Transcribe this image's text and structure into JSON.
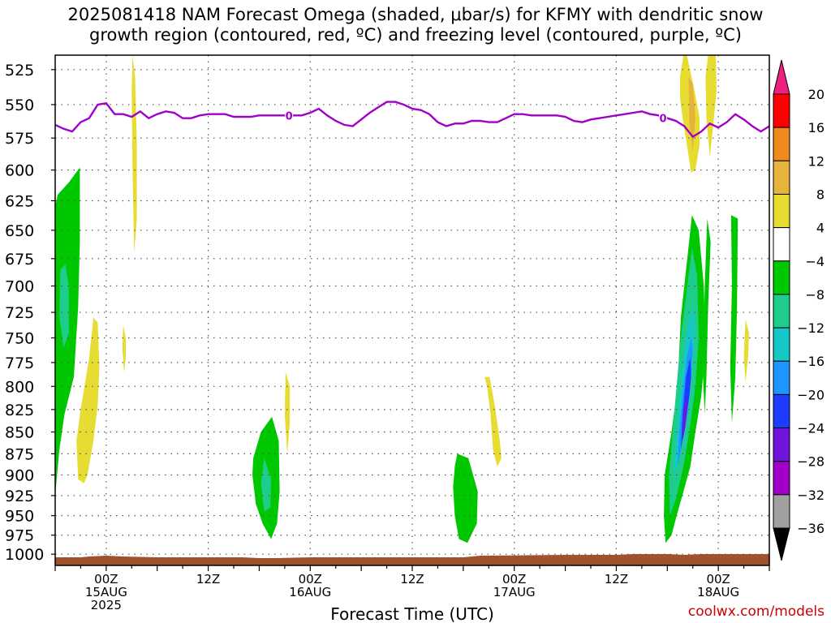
{
  "title": {
    "line1": "2025081418 NAM Forecast Omega (shaded, μbar/s) for KFMY with dendritic snow",
    "line2": "growth region (contoured, red, ºC) and freezing level (contoured, purple, ºC)"
  },
  "credit": "coolwx.com/models",
  "chart_data": {
    "type": "contour-timeheight",
    "xlabel": "Forecast Time (UTC)",
    "y_ticks": [
      525,
      550,
      575,
      600,
      625,
      650,
      675,
      700,
      725,
      750,
      775,
      800,
      825,
      850,
      875,
      900,
      925,
      950,
      975,
      1000
    ],
    "y_range": [
      515,
      1015
    ],
    "y_scale": "log-pressure",
    "x_range_hours": [
      0,
      84
    ],
    "x_ticks": [
      {
        "h": 6,
        "line1": "00Z",
        "line2": "15AUG",
        "line3": "2025"
      },
      {
        "h": 18,
        "line1": "12Z",
        "line2": "",
        "line3": ""
      },
      {
        "h": 30,
        "line1": "00Z",
        "line2": "16AUG",
        "line3": ""
      },
      {
        "h": 42,
        "line1": "12Z",
        "line2": "",
        "line3": ""
      },
      {
        "h": 54,
        "line1": "00Z",
        "line2": "17AUG",
        "line3": ""
      },
      {
        "h": 66,
        "line1": "12Z",
        "line2": "",
        "line3": ""
      },
      {
        "h": 78,
        "line1": "00Z",
        "line2": "18AUG",
        "line3": ""
      }
    ],
    "grid": true,
    "colorbar": {
      "labels": [
        "20",
        "16",
        "12",
        "8",
        "4",
        "−4",
        "−8",
        "−12",
        "−16",
        "−20",
        "−24",
        "−28",
        "−32",
        "−36"
      ],
      "colors": [
        "#ff0000",
        "#ee8a1e",
        "#e6b43a",
        "#e6dc32",
        "#ffffff",
        "#00c800",
        "#1ecc8c",
        "#14c8c8",
        "#1e96ff",
        "#1e3cff",
        "#6e14dc",
        "#a000c8",
        "#a0a0a0"
      ],
      "top_color": "#ee2080",
      "bottom_color": "#000000"
    },
    "freezing_level": {
      "label": "0",
      "color": "#a000c8",
      "hours": [
        0,
        1,
        2,
        3,
        4,
        5,
        6,
        7,
        8,
        9,
        10,
        11,
        12,
        13,
        14,
        15,
        16,
        17,
        18,
        19,
        20,
        21,
        22,
        23,
        24,
        25,
        26,
        27,
        28,
        29,
        30,
        31,
        32,
        33,
        34,
        35,
        36,
        37,
        38,
        39,
        40,
        41,
        42,
        43,
        44,
        45,
        46,
        47,
        48,
        49,
        50,
        51,
        52,
        53,
        54,
        55,
        56,
        57,
        58,
        59,
        60,
        61,
        62,
        63,
        64,
        65,
        66,
        67,
        68,
        69,
        70,
        71,
        72,
        73,
        74,
        75,
        76,
        77,
        78,
        79,
        80,
        81,
        82,
        83,
        84
      ],
      "pressure": [
        565,
        568,
        570,
        563,
        560,
        550,
        549,
        557,
        557,
        559,
        555,
        560,
        557,
        555,
        556,
        560,
        560,
        558,
        557,
        557,
        557,
        559,
        559,
        559,
        558,
        558,
        558,
        558,
        558,
        558,
        556,
        553,
        558,
        562,
        565,
        566,
        561,
        556,
        552,
        548,
        548,
        550,
        553,
        554,
        557,
        563,
        566,
        564,
        564,
        562,
        562,
        563,
        563,
        560,
        557,
        557,
        558,
        558,
        558,
        558,
        559,
        562,
        563,
        561,
        560,
        559,
        558,
        557,
        556,
        555,
        557,
        558,
        560,
        562,
        566,
        574,
        570,
        564,
        567,
        563,
        557,
        561,
        566,
        570,
        566
      ]
    },
    "omega_regions": [
      {
        "value": -6,
        "h": [
          0,
          0.3,
          1.6,
          2.9,
          2.9,
          2.7,
          2.2,
          1.1,
          0.5,
          0,
          0
        ],
        "p": [
          630,
          620,
          610,
          598,
          660,
          720,
          790,
          830,
          870,
          925,
          925
        ]
      },
      {
        "value": -10,
        "h": [
          0.6,
          1.2,
          1.6,
          1.6,
          1.0,
          0.5
        ],
        "p": [
          685,
          680,
          700,
          745,
          760,
          730
        ]
      },
      {
        "value": 6,
        "h": [
          4.5,
          5.0,
          5.2,
          5.0,
          4.5,
          3.8,
          3.4,
          2.7,
          2.5,
          3.0,
          4.0
        ],
        "p": [
          730,
          735,
          780,
          820,
          860,
          900,
          910,
          905,
          860,
          825,
          770
        ]
      },
      {
        "value": 6,
        "h": [
          9.1,
          9.4,
          9.6,
          9.6,
          9.3,
          9.1,
          9.0
        ],
        "p": [
          515,
          530,
          580,
          640,
          670,
          600,
          540
        ]
      },
      {
        "value": 6,
        "h": [
          8.0,
          8.3,
          8.3,
          8.1,
          7.9
        ],
        "p": [
          738,
          750,
          770,
          785,
          760
        ]
      },
      {
        "value": -6,
        "h": [
          25.5,
          26.3,
          26.4,
          26.1,
          25.4,
          24.4,
          23.6,
          23.2,
          23.3,
          24.2
        ],
        "p": [
          833,
          860,
          920,
          960,
          980,
          960,
          935,
          900,
          880,
          850
        ]
      },
      {
        "value": -10,
        "h": [
          24.6,
          25.4,
          25.3,
          24.6,
          24.2
        ],
        "p": [
          880,
          905,
          940,
          945,
          910
        ]
      },
      {
        "value": 6,
        "h": [
          27.1,
          27.6,
          27.6,
          27.3,
          27.0
        ],
        "p": [
          785,
          800,
          840,
          875,
          830
        ]
      },
      {
        "value": -6,
        "h": [
          47.3,
          48.6,
          49.7,
          49.6,
          48.5,
          47.5,
          47.0,
          46.8,
          47.0
        ],
        "p": [
          875,
          880,
          920,
          960,
          985,
          980,
          950,
          915,
          890
        ]
      },
      {
        "value": 6,
        "h": [
          50.5,
          51.1,
          51.7,
          52.3,
          52.5,
          52.0,
          51.5,
          51.2,
          50.8
        ],
        "p": [
          790,
          790,
          820,
          860,
          880,
          890,
          870,
          830,
          800
        ]
      },
      {
        "value": -6,
        "h": [
          74.9,
          75.7,
          76.3,
          76.5,
          76.0,
          75.3,
          74.7,
          73.9,
          73.1,
          72.5,
          71.8,
          71.6,
          71.7,
          72.5,
          73.2,
          73.6
        ],
        "p": [
          637,
          650,
          700,
          760,
          810,
          850,
          890,
          920,
          950,
          975,
          985,
          950,
          900,
          850,
          800,
          730
        ]
      },
      {
        "value": -10,
        "h": [
          74.9,
          75.5,
          75.7,
          75.3,
          74.6,
          73.9,
          73.0,
          72.3,
          72.2,
          72.8,
          73.6
        ],
        "p": [
          665,
          690,
          750,
          800,
          850,
          890,
          930,
          950,
          900,
          830,
          750
        ]
      },
      {
        "value": -14,
        "h": [
          74.9,
          75.2,
          75.1,
          74.7,
          74.1,
          73.4,
          72.8,
          73.0,
          73.6,
          74.2
        ],
        "p": [
          720,
          735,
          770,
          810,
          850,
          880,
          900,
          860,
          800,
          750
        ]
      },
      {
        "value": -18,
        "h": [
          74.8,
          75.0,
          74.8,
          74.4,
          73.8,
          73.2,
          73.4,
          73.9,
          74.3
        ],
        "p": [
          750,
          760,
          790,
          830,
          860,
          890,
          850,
          800,
          770
        ]
      },
      {
        "value": -22,
        "h": [
          74.7,
          74.8,
          74.6,
          74.1,
          73.6,
          73.8,
          74.2
        ],
        "p": [
          770,
          790,
          810,
          840,
          870,
          830,
          790
        ]
      },
      {
        "value": -26,
        "h": [
          74.3,
          74.4,
          74.1,
          73.8,
          73.9
        ],
        "p": [
          810,
          820,
          845,
          860,
          830
        ]
      },
      {
        "value": -6,
        "h": [
          76.7,
          77.1,
          76.8,
          76.6,
          76.4,
          76.2,
          76.4
        ],
        "p": [
          640,
          660,
          720,
          790,
          830,
          790,
          700
        ]
      },
      {
        "value": -6,
        "h": [
          79.5,
          80.3,
          80.2,
          80.0,
          79.6,
          79.4,
          79.6
        ],
        "p": [
          637,
          640,
          720,
          790,
          840,
          780,
          700
        ]
      },
      {
        "value": 6,
        "h": [
          81.2,
          81.6,
          81.5,
          81.2,
          81.0,
          81.1
        ],
        "p": [
          732,
          745,
          770,
          795,
          770,
          750
        ]
      },
      {
        "value": 6,
        "h": [
          73.9,
          74.3,
          75.2,
          75.8,
          75.8,
          75.3,
          74.8,
          74.3,
          73.8,
          73.5,
          73.5
        ],
        "p": [
          515,
          515,
          540,
          560,
          580,
          600,
          602,
          580,
          560,
          545,
          530
        ]
      },
      {
        "value": 10,
        "h": [
          74.5,
          75.0,
          75.3,
          75.0,
          74.6
        ],
        "p": [
          530,
          535,
          560,
          585,
          565
        ]
      },
      {
        "value": 6,
        "h": [
          76.8,
          77.7,
          77.8,
          77.4,
          77.0,
          76.6,
          76.5
        ],
        "p": [
          515,
          515,
          540,
          565,
          590,
          560,
          530
        ]
      }
    ]
  }
}
